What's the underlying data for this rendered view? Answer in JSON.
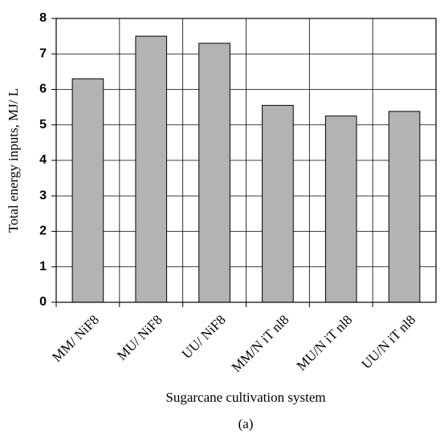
{
  "chart_data": {
    "type": "bar",
    "xlabel": "Sugarcane cultivation system",
    "ylabel": "Total energy inputs, MJ/ L",
    "caption": "(a)",
    "categories": [
      "MM/ NiF8",
      "MU/ NiF8",
      "UU/ NiF8",
      "MM/N iT nl8",
      "MU/N iT nl8",
      "UU/N iT nl8"
    ],
    "values": [
      6.3,
      7.5,
      7.3,
      5.55,
      5.25,
      5.38
    ],
    "color": "#b3b3b3",
    "ylim": [
      0,
      8
    ],
    "yticks": [
      0,
      1,
      2,
      3,
      4,
      5,
      6,
      7,
      8
    ],
    "grid": true
  }
}
